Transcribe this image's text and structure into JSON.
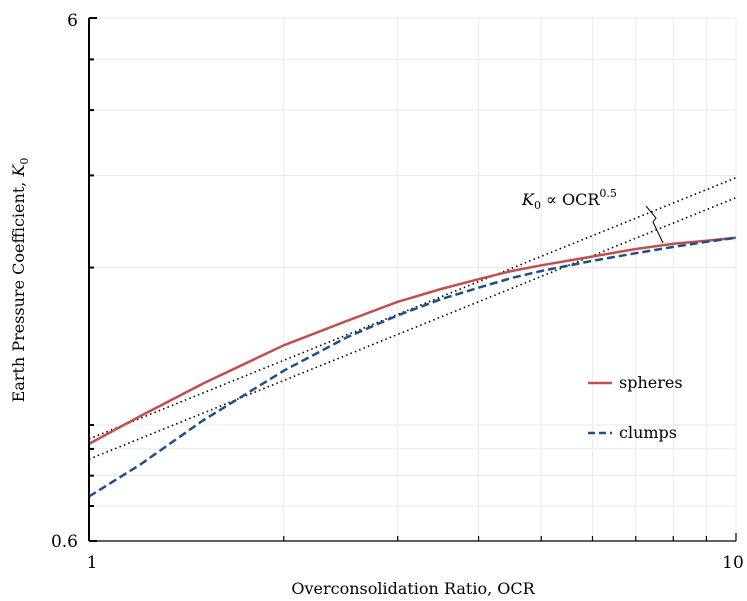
{
  "chart_data": {
    "type": "line",
    "title": "",
    "xlabel": "Overconsolidation Ratio, OCR",
    "ylabel_text": "Earth Pressure Coefficient, ",
    "ylabel_symbol": "K",
    "ylabel_subscript": "0",
    "xscale": "log",
    "yscale": "log",
    "xlim": [
      1,
      10
    ],
    "ylim": [
      0.6,
      6
    ],
    "x_tick_labels": [
      "1",
      "10"
    ],
    "y_tick_labels": [
      "0.6",
      "6"
    ],
    "grid": true,
    "legend_position": "right",
    "series": [
      {
        "name": "spheres",
        "color": "#c0504d",
        "style": "solid",
        "x": [
          1,
          1.2,
          1.5,
          2,
          2.5,
          3,
          3.5,
          4,
          4.5,
          5,
          6,
          7,
          8,
          9,
          10
        ],
        "y": [
          0.92,
          1.04,
          1.2,
          1.42,
          1.58,
          1.72,
          1.82,
          1.9,
          1.97,
          2.02,
          2.1,
          2.17,
          2.22,
          2.25,
          2.28
        ]
      },
      {
        "name": "clumps",
        "color": "#1f4e8c",
        "style": "dashed",
        "x": [
          1,
          1.2,
          1.5,
          2,
          2.5,
          3,
          3.5,
          4,
          4.5,
          5,
          6,
          7,
          8,
          9,
          10
        ],
        "y": [
          0.73,
          0.84,
          1.02,
          1.27,
          1.47,
          1.62,
          1.74,
          1.83,
          1.91,
          1.97,
          2.06,
          2.13,
          2.19,
          2.24,
          2.28
        ]
      }
    ],
    "reference_lines": [
      {
        "style": "dotted",
        "x": [
          1,
          10
        ],
        "y": [
          0.94,
          2.97
        ]
      },
      {
        "style": "dotted",
        "x": [
          1,
          10
        ],
        "y": [
          0.86,
          2.72
        ]
      }
    ],
    "annotation": {
      "symbol": "K",
      "subscript": "0",
      "text": " ∝ OCR",
      "superscript": "0.5"
    }
  }
}
